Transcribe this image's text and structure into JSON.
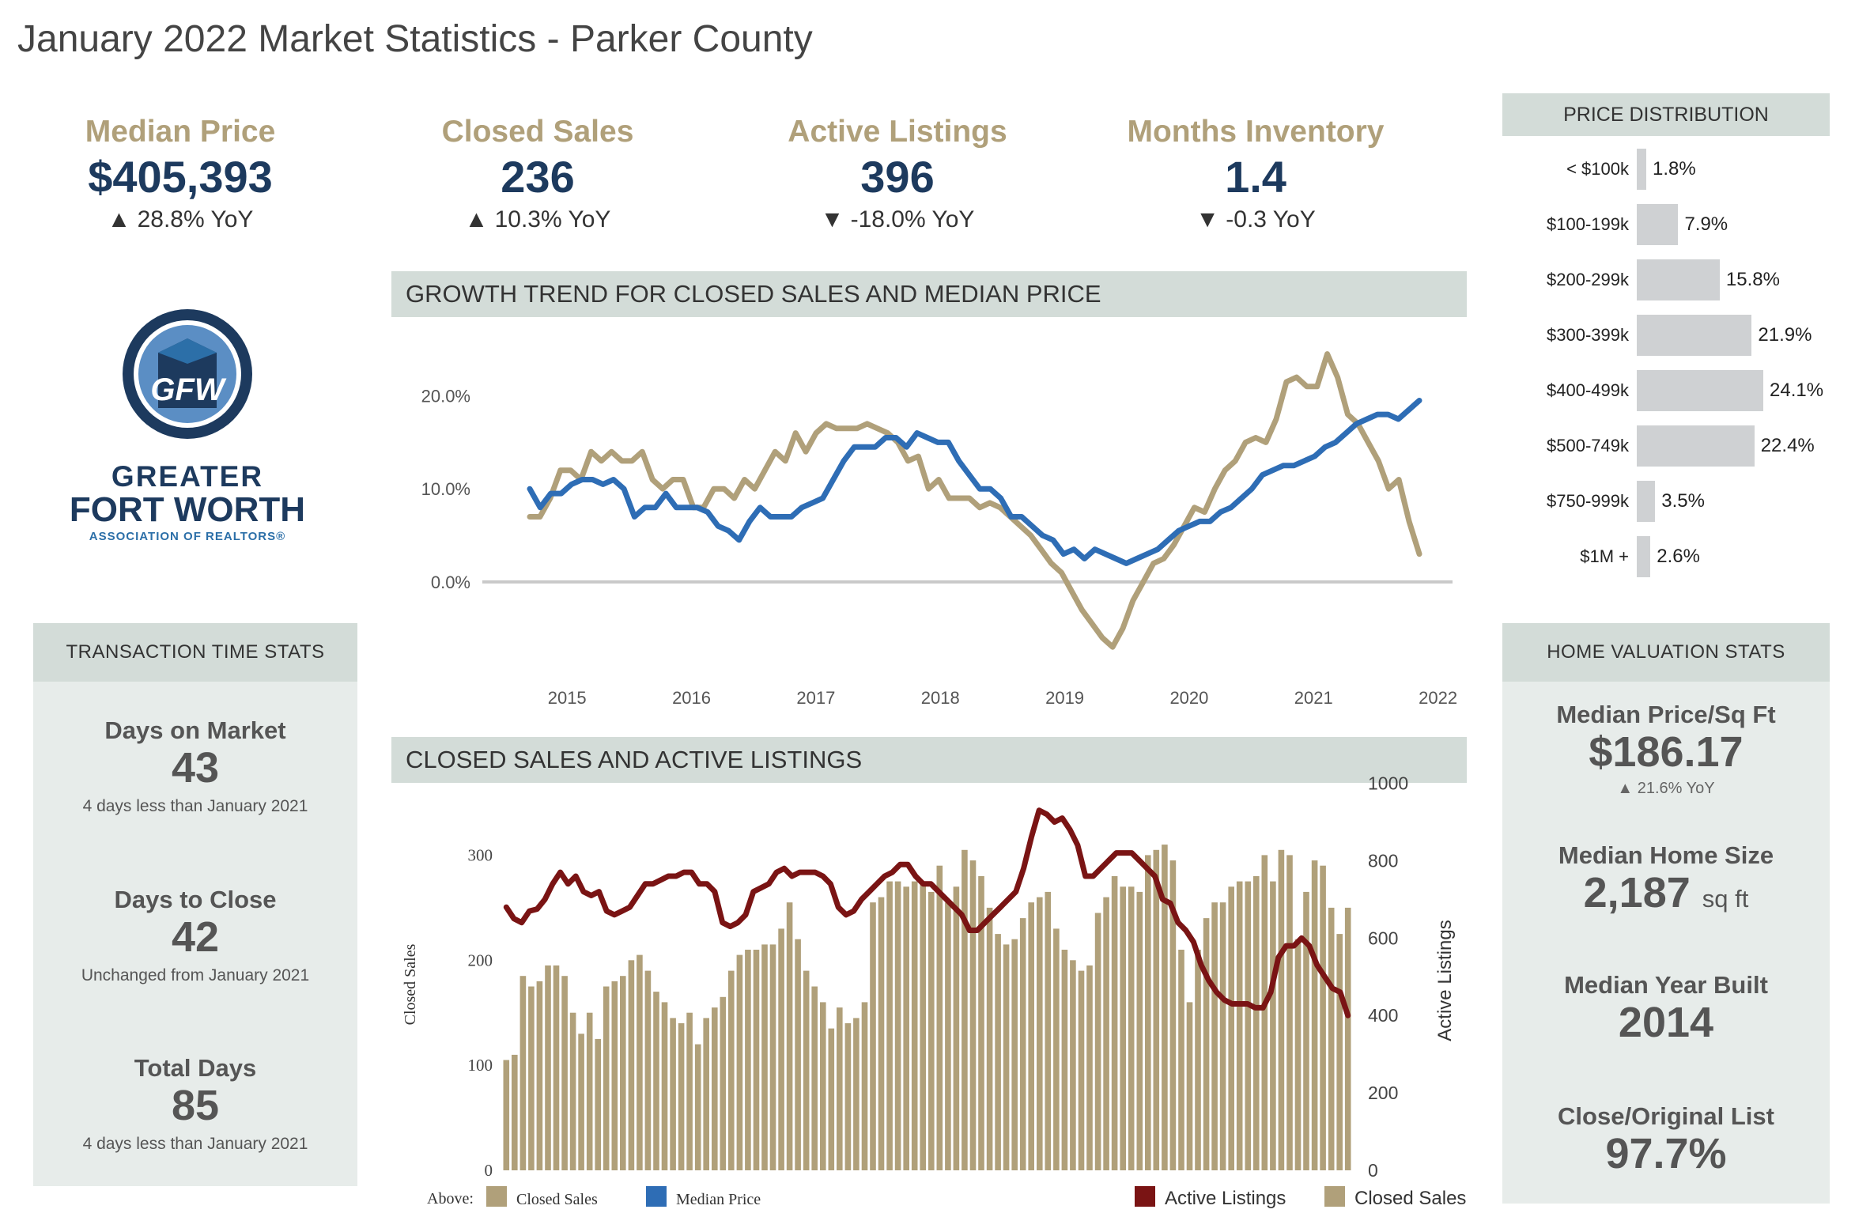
{
  "page": {
    "title": "January 2022 Market Statistics - Parker County"
  },
  "kpis": [
    {
      "label": "Median Price",
      "value": "$405,393",
      "change": "▲ 28.8% YoY"
    },
    {
      "label": "Closed Sales",
      "value": "236",
      "change": "▲ 10.3% YoY"
    },
    {
      "label": "Active Listings",
      "value": "396",
      "change": "▼ -18.0% YoY"
    },
    {
      "label": "Months Inventory",
      "value": "1.4",
      "change": "▼ -0.3 YoY"
    }
  ],
  "logo": {
    "monogram": "GFW",
    "line1": "GREATER",
    "line2": "FORT WORTH",
    "line3": "ASSOCIATION OF REALTORS®"
  },
  "transaction": {
    "title": "TRANSACTION TIME STATS",
    "stats": [
      {
        "label": "Days on Market",
        "value": "43",
        "note": "4 days less than January 2021"
      },
      {
        "label": "Days to Close",
        "value": "42",
        "note": "Unchanged from January 2021"
      },
      {
        "label": "Total Days",
        "value": "85",
        "note": "4 days less than January 2021"
      }
    ]
  },
  "valuation": {
    "title": "HOME VALUATION STATS",
    "price_sqft": {
      "label": "Median Price/Sq Ft",
      "value": "$186.17",
      "change": "▲ 21.6% YoY"
    },
    "home_size": {
      "label": "Median Home Size",
      "value": "2,187",
      "unit": "sq ft"
    },
    "year_built": {
      "label": "Median Year Built",
      "value": "2014"
    },
    "close_list": {
      "label": "Close/Original List",
      "value": "97.7%"
    }
  },
  "growth_section": {
    "title": "GROWTH TREND FOR CLOSED SALES AND MEDIAN PRICE"
  },
  "sales_section": {
    "title": "CLOSED SALES AND ACTIVE LISTINGS"
  },
  "colors": {
    "gold": "#b0a07a",
    "blue": "#2e6db5",
    "maroon": "#7a1414",
    "navy": "#1d3a5e",
    "panel": "#e7ecea",
    "header": "#d3dcd8"
  },
  "chart_data": [
    {
      "type": "line",
      "title": "GROWTH TREND FOR CLOSED SALES AND MEDIAN PRICE",
      "x_ticks": [
        "2015",
        "2016",
        "2017",
        "2018",
        "2019",
        "2020",
        "2021",
        "2022"
      ],
      "y_ticks": [
        "0.0%",
        "10.0%",
        "20.0%"
      ],
      "ylim": [
        -8,
        26
      ],
      "x_start": 2014.7,
      "x_end": 2021.85,
      "legend_prefix": "Above:",
      "series": [
        {
          "name": "Closed Sales",
          "color": "#b0a07a",
          "values": [
            7,
            7,
            9,
            12,
            12,
            11,
            14,
            13,
            14,
            13,
            13,
            14,
            11,
            10,
            11,
            11,
            8,
            8,
            10,
            10,
            9,
            11,
            10,
            12,
            14,
            13,
            16,
            14,
            16,
            17,
            16.5,
            16.5,
            16.5,
            17,
            16.5,
            16,
            15,
            13,
            13.5,
            10,
            11,
            9,
            9,
            9,
            8,
            8.5,
            8,
            7,
            6,
            5,
            3.5,
            2,
            1,
            -1,
            -3,
            -4.5,
            -6,
            -7,
            -5,
            -2,
            0,
            2,
            2.5,
            4,
            6,
            8,
            7.5,
            10,
            12,
            13,
            15,
            15.5,
            15,
            17.5,
            21.5,
            22,
            21,
            21,
            24.5,
            22,
            18,
            17,
            15,
            13,
            10,
            11,
            6.5,
            3
          ]
        },
        {
          "name": "Median Price",
          "color": "#2e6db5",
          "values": [
            10,
            8,
            9.5,
            9.5,
            10.5,
            11,
            11,
            10.5,
            11,
            10,
            7,
            8,
            8,
            9.5,
            8,
            8,
            8,
            7.5,
            6,
            5.5,
            4.5,
            6.5,
            8,
            7,
            7,
            7,
            8,
            8.5,
            9,
            11,
            13,
            14.5,
            14.5,
            14.5,
            15.5,
            15.5,
            14.5,
            16,
            15.5,
            15,
            15,
            13,
            11.5,
            10,
            10,
            9,
            7,
            7,
            6,
            5,
            4.5,
            3,
            3.5,
            2.5,
            3.5,
            3,
            2.5,
            2,
            2.5,
            3,
            3.5,
            4.5,
            5.5,
            6,
            6.5,
            6.5,
            7.5,
            8,
            9,
            10,
            11.5,
            12,
            12.5,
            12.5,
            13,
            13.5,
            14.5,
            15,
            16,
            17,
            17.5,
            18,
            18,
            17.5,
            18.5,
            19.5
          ]
        }
      ]
    },
    {
      "type": "bar",
      "title": "CLOSED SALES AND ACTIVE LISTINGS",
      "ylabel": "Closed Sales",
      "y2label": "Active Listings",
      "ylim": [
        0,
        350
      ],
      "y2lim": [
        0,
        950
      ],
      "y_ticks": [
        0,
        100,
        200,
        300
      ],
      "y2_ticks": [
        0,
        200,
        400,
        600,
        800,
        1000
      ],
      "series": [
        {
          "name": "Closed Sales",
          "color": "#b0a07a",
          "axis": "left",
          "values": [
            105,
            110,
            185,
            175,
            180,
            195,
            195,
            185,
            150,
            130,
            150,
            125,
            175,
            180,
            185,
            200,
            205,
            190,
            170,
            160,
            145,
            140,
            150,
            120,
            145,
            155,
            165,
            190,
            205,
            210,
            210,
            215,
            215,
            230,
            255,
            220,
            190,
            175,
            160,
            135,
            155,
            140,
            145,
            160,
            255,
            260,
            275,
            275,
            270,
            275,
            275,
            265,
            290,
            255,
            270,
            305,
            295,
            280,
            250,
            225,
            215,
            220,
            240,
            255,
            260,
            265,
            230,
            210,
            200,
            190,
            195,
            245,
            260,
            280,
            270,
            270,
            265,
            300,
            305,
            310,
            295,
            210,
            160,
            210,
            240,
            255,
            255,
            270,
            275,
            275,
            280,
            300,
            275,
            305,
            300,
            220,
            265,
            295,
            290,
            250,
            225,
            250
          ]
        },
        {
          "name": "Active Listings",
          "color": "#7a1414",
          "axis": "right",
          "values": [
            680,
            650,
            640,
            670,
            675,
            700,
            740,
            770,
            740,
            760,
            720,
            710,
            720,
            670,
            660,
            670,
            680,
            710,
            740,
            740,
            750,
            760,
            760,
            770,
            770,
            740,
            740,
            720,
            640,
            630,
            640,
            660,
            720,
            730,
            740,
            770,
            780,
            760,
            770,
            770,
            770,
            760,
            740,
            680,
            660,
            670,
            700,
            720,
            740,
            760,
            770,
            790,
            790,
            760,
            740,
            740,
            720,
            700,
            680,
            660,
            620,
            620,
            640,
            660,
            680,
            700,
            720,
            780,
            860,
            930,
            920,
            900,
            910,
            880,
            840,
            760,
            760,
            780,
            800,
            820,
            820,
            820,
            800,
            780,
            760,
            700,
            690,
            640,
            620,
            590,
            530,
            490,
            460,
            440,
            430,
            430,
            430,
            420,
            420,
            460,
            550,
            580,
            580,
            600,
            580,
            530,
            500,
            470,
            460,
            400
          ]
        }
      ]
    }
  ],
  "price_distribution": {
    "title": "PRICE DISTRIBUTION",
    "rows": [
      {
        "label": "< $100k",
        "value": 1.8,
        "text": "1.8%"
      },
      {
        "label": "$100-199k",
        "value": 7.9,
        "text": "7.9%"
      },
      {
        "label": "$200-299k",
        "value": 15.8,
        "text": "15.8%"
      },
      {
        "label": "$300-399k",
        "value": 21.9,
        "text": "21.9%"
      },
      {
        "label": "$400-499k",
        "value": 24.1,
        "text": "24.1%"
      },
      {
        "label": "$500-749k",
        "value": 22.4,
        "text": "22.4%"
      },
      {
        "label": "$750-999k",
        "value": 3.5,
        "text": "3.5%"
      },
      {
        "label": "$1M +",
        "value": 2.6,
        "text": "2.6%"
      }
    ]
  }
}
